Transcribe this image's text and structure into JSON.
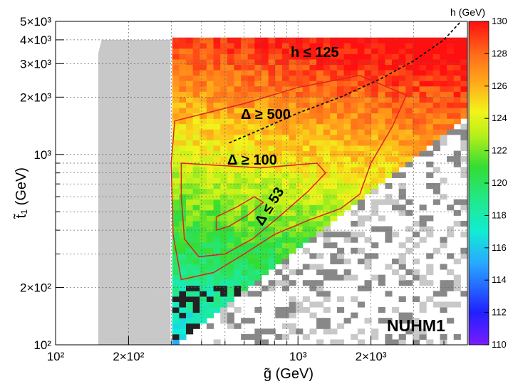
{
  "chart_data": {
    "type": "heatmap",
    "title": "",
    "xlabel": "g̃ (GeV)",
    "ylabel": "t̃₁ (GeV)",
    "x_scale": "log",
    "y_scale": "log",
    "xlim": [
      100,
      5000
    ],
    "ylim": [
      100,
      5000
    ],
    "grid": true,
    "x_ticks": [
      {
        "value": 100,
        "label": "10²"
      },
      {
        "value": 200,
        "label": "2×10²"
      },
      {
        "value": 1000,
        "label": "10³"
      },
      {
        "value": 2000,
        "label": "2×10³"
      }
    ],
    "y_ticks": [
      {
        "value": 100,
        "label": "10²"
      },
      {
        "value": 200,
        "label": "2×10²"
      },
      {
        "value": 1000,
        "label": "10³"
      },
      {
        "value": 2000,
        "label": "2×10³"
      },
      {
        "value": 3000,
        "label": "3×10³"
      },
      {
        "value": 4000,
        "label": "4×10³"
      },
      {
        "value": 5000,
        "label": "5×10³"
      }
    ],
    "colorbar": {
      "label": "h (GeV)",
      "min": 110,
      "max": 130,
      "ticks": [
        110,
        112,
        114,
        116,
        118,
        120,
        122,
        124,
        126,
        128,
        130
      ]
    },
    "annotations": [
      {
        "text": "h ≤ 125"
      },
      {
        "text": "Δ ≥ 500"
      },
      {
        "text": "Δ ≥ 100"
      },
      {
        "text": "Δ ≤ 53"
      },
      {
        "text": "NUHM1"
      }
    ],
    "contours": [
      {
        "label": "Δ ≥ 500",
        "color": "#dd2222",
        "points": [
          [
            310,
            1500
          ],
          [
            600,
            1850
          ],
          [
            1000,
            2250
          ],
          [
            1800,
            2600
          ],
          [
            2800,
            2050
          ],
          [
            2450,
            1400
          ],
          [
            2000,
            900
          ],
          [
            1800,
            620
          ],
          [
            1500,
            520
          ],
          [
            1100,
            450
          ],
          [
            800,
            380
          ],
          [
            600,
            300
          ],
          [
            450,
            240
          ],
          [
            330,
            220
          ],
          [
            305,
            380
          ],
          [
            300,
            900
          ],
          [
            310,
            1500
          ]
        ]
      },
      {
        "label": "Δ ≥ 100",
        "color": "#dd2222",
        "points": [
          [
            330,
            900
          ],
          [
            700,
            850
          ],
          [
            1200,
            900
          ],
          [
            1300,
            800
          ],
          [
            1100,
            640
          ],
          [
            850,
            480
          ],
          [
            650,
            360
          ],
          [
            500,
            300
          ],
          [
            390,
            290
          ],
          [
            340,
            360
          ],
          [
            330,
            600
          ],
          [
            330,
            900
          ]
        ]
      },
      {
        "label": "Δ ≤ 53",
        "color": "#dd2222",
        "points": [
          [
            460,
            470
          ],
          [
            560,
            530
          ],
          [
            660,
            600
          ],
          [
            720,
            560
          ],
          [
            620,
            480
          ],
          [
            520,
            420
          ],
          [
            460,
            400
          ],
          [
            460,
            470
          ]
        ]
      },
      {
        "label": "h ≤ 125",
        "color": "#111111",
        "dashed": true,
        "points": [
          [
            520,
            1150
          ],
          [
            700,
            1350
          ],
          [
            1000,
            1650
          ],
          [
            1500,
            2000
          ],
          [
            2200,
            2500
          ],
          [
            3000,
            3100
          ],
          [
            4000,
            4000
          ],
          [
            4700,
            5000
          ]
        ]
      }
    ],
    "regions": [
      {
        "name": "grey",
        "color": "#c8c8c8",
        "points": [
          [
            150,
            100
          ],
          [
            150,
            3400
          ],
          [
            155,
            4000
          ],
          [
            298,
            4000
          ],
          [
            298,
            100
          ]
        ]
      }
    ]
  }
}
